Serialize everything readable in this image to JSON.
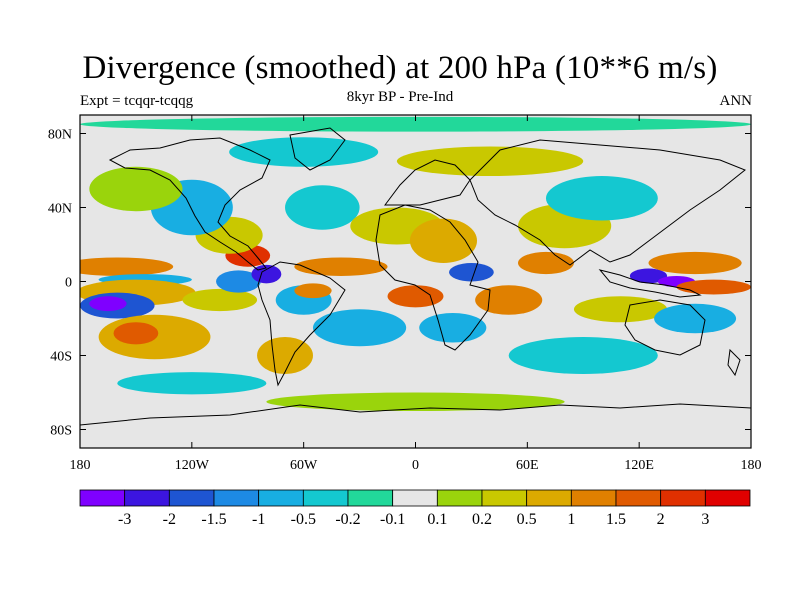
{
  "header": {
    "title": "Divergence (smoothed) at 200 hPa (10**6 m/s)",
    "subtitle": "8kyr BP - Pre-Ind",
    "left_label": "Expt = tcqqr-tcqqg",
    "right_label": "ANN"
  },
  "axes": {
    "lat_ticks": [
      {
        "value": 80,
        "label": "80N"
      },
      {
        "value": 40,
        "label": "40N"
      },
      {
        "value": 0,
        "label": "0"
      },
      {
        "value": -40,
        "label": "40S"
      },
      {
        "value": -80,
        "label": "80S"
      }
    ],
    "lon_ticks": [
      {
        "value": -180,
        "label": "180"
      },
      {
        "value": -120,
        "label": "120W"
      },
      {
        "value": -60,
        "label": "60W"
      },
      {
        "value": 0,
        "label": "0"
      },
      {
        "value": 60,
        "label": "60E"
      },
      {
        "value": 120,
        "label": "120E"
      },
      {
        "value": 180,
        "label": "180"
      }
    ]
  },
  "colorbar": {
    "colors": [
      "#7f00ff",
      "#3c15e0",
      "#1e55d2",
      "#1d8ae4",
      "#18aee2",
      "#14c8d0",
      "#22d89a",
      "#e6e6e6",
      "#9ad40c",
      "#c9c800",
      "#dcaa00",
      "#e08000",
      "#e05a00",
      "#e03000",
      "#e00000"
    ],
    "labels": [
      "-3",
      "-2",
      "-1.5",
      "-1",
      "-0.5",
      "-0.2",
      "-0.1",
      "0.1",
      "0.2",
      "0.5",
      "1",
      "1.5",
      "2",
      "3"
    ]
  },
  "map": {
    "background_color": "#e6e6e6",
    "coastline_color": "#000000",
    "regions": [
      {
        "lon": -160,
        "lat": 8,
        "rx": 30,
        "ry": 5,
        "level": 11
      },
      {
        "lon": -145,
        "lat": 1,
        "rx": 25,
        "ry": 3,
        "level": 4
      },
      {
        "lon": -150,
        "lat": -6,
        "rx": 32,
        "ry": 7,
        "level": 10
      },
      {
        "lon": -160,
        "lat": -13,
        "rx": 20,
        "ry": 7,
        "level": 2
      },
      {
        "lon": -165,
        "lat": -12,
        "rx": 10,
        "ry": 4,
        "level": 0
      },
      {
        "lon": -140,
        "lat": -30,
        "rx": 30,
        "ry": 12,
        "level": 10
      },
      {
        "lon": -150,
        "lat": -28,
        "rx": 12,
        "ry": 6,
        "level": 12
      },
      {
        "lon": -105,
        "lat": -10,
        "rx": 20,
        "ry": 6,
        "level": 9
      },
      {
        "lon": -95,
        "lat": 0,
        "rx": 12,
        "ry": 6,
        "level": 3
      },
      {
        "lon": -80,
        "lat": 4,
        "rx": 8,
        "ry": 5,
        "level": 1
      },
      {
        "lon": -90,
        "lat": 14,
        "rx": 12,
        "ry": 6,
        "level": 13
      },
      {
        "lon": -100,
        "lat": 25,
        "rx": 18,
        "ry": 10,
        "level": 9
      },
      {
        "lon": -120,
        "lat": 40,
        "rx": 22,
        "ry": 15,
        "level": 4
      },
      {
        "lon": -150,
        "lat": 50,
        "rx": 25,
        "ry": 12,
        "level": 8
      },
      {
        "lon": -60,
        "lat": -10,
        "rx": 15,
        "ry": 8,
        "level": 4
      },
      {
        "lon": -55,
        "lat": -5,
        "rx": 10,
        "ry": 4,
        "level": 11
      },
      {
        "lon": -40,
        "lat": 8,
        "rx": 25,
        "ry": 5,
        "level": 11
      },
      {
        "lon": -30,
        "lat": -25,
        "rx": 25,
        "ry": 10,
        "level": 4
      },
      {
        "lon": -70,
        "lat": -40,
        "rx": 15,
        "ry": 10,
        "level": 10
      },
      {
        "lon": -50,
        "lat": 40,
        "rx": 20,
        "ry": 12,
        "level": 5
      },
      {
        "lon": -10,
        "lat": 30,
        "rx": 25,
        "ry": 10,
        "level": 9
      },
      {
        "lon": 15,
        "lat": 22,
        "rx": 18,
        "ry": 12,
        "level": 10
      },
      {
        "lon": 30,
        "lat": 5,
        "rx": 12,
        "ry": 5,
        "level": 2
      },
      {
        "lon": 50,
        "lat": -10,
        "rx": 18,
        "ry": 8,
        "level": 11
      },
      {
        "lon": 0,
        "lat": -8,
        "rx": 15,
        "ry": 6,
        "level": 12
      },
      {
        "lon": 20,
        "lat": -25,
        "rx": 18,
        "ry": 8,
        "level": 4
      },
      {
        "lon": 70,
        "lat": 10,
        "rx": 15,
        "ry": 6,
        "level": 11
      },
      {
        "lon": 80,
        "lat": 30,
        "rx": 25,
        "ry": 12,
        "level": 9
      },
      {
        "lon": 100,
        "lat": 45,
        "rx": 30,
        "ry": 12,
        "level": 5
      },
      {
        "lon": 125,
        "lat": 3,
        "rx": 10,
        "ry": 4,
        "level": 1
      },
      {
        "lon": 140,
        "lat": 0,
        "rx": 10,
        "ry": 3,
        "level": 0
      },
      {
        "lon": 150,
        "lat": 10,
        "rx": 25,
        "ry": 6,
        "level": 11
      },
      {
        "lon": 160,
        "lat": -3,
        "rx": 20,
        "ry": 4,
        "level": 12
      },
      {
        "lon": 110,
        "lat": -15,
        "rx": 25,
        "ry": 7,
        "level": 9
      },
      {
        "lon": 150,
        "lat": -20,
        "rx": 22,
        "ry": 8,
        "level": 4
      },
      {
        "lon": 90,
        "lat": -40,
        "rx": 40,
        "ry": 10,
        "level": 5
      },
      {
        "lon": -60,
        "lat": 70,
        "rx": 40,
        "ry": 8,
        "level": 5
      },
      {
        "lon": 40,
        "lat": 65,
        "rx": 50,
        "ry": 8,
        "level": 9
      },
      {
        "lon": 0,
        "lat": -65,
        "rx": 80,
        "ry": 5,
        "level": 8
      },
      {
        "lon": -120,
        "lat": -55,
        "rx": 40,
        "ry": 6,
        "level": 5
      },
      {
        "lon": 0,
        "lat": 85,
        "rx": 180,
        "ry": 4,
        "level": 6
      }
    ]
  }
}
